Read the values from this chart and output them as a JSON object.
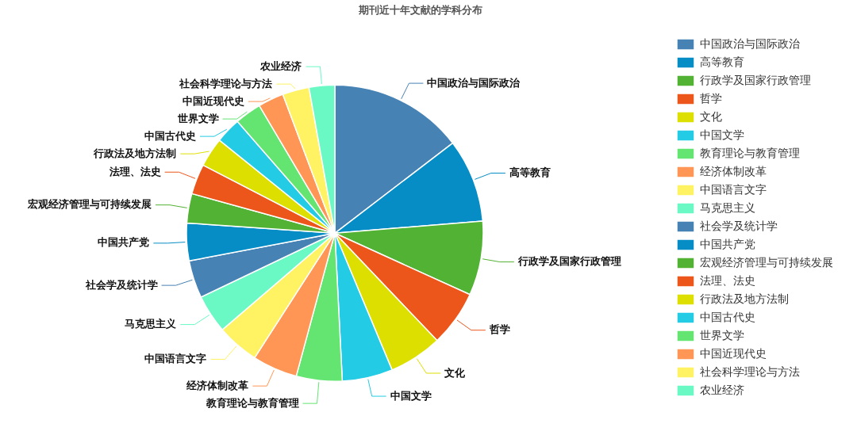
{
  "chart_data": {
    "type": "pie",
    "title": "期刊近十年文献的学科分布",
    "categories": [
      "中国政治与国际政治",
      "高等教育",
      "行政学及国家行政管理",
      "哲学",
      "文化",
      "中国文学",
      "教育理论与教育管理",
      "经济体制改革",
      "中国语言文字",
      "马克思主义",
      "社会学及统计学",
      "中国共产党",
      "宏观经济管理与可持续发展",
      "法理、法史",
      "行政法及地方法制",
      "中国古代史",
      "世界文学",
      "中国近现代史",
      "社会科学理论与方法",
      "农业经济"
    ],
    "values": [
      14.6,
      9.1,
      8.1,
      6.1,
      5.8,
      5.5,
      5.0,
      4.9,
      4.6,
      4.2,
      4.1,
      4.1,
      3.2,
      3.3,
      3.2,
      2.8,
      2.9,
      2.8,
      2.9,
      2.8
    ],
    "colors": [
      "#4682b4",
      "#078dc6",
      "#52b233",
      "#ed561b",
      "#dddf00",
      "#24cbe5",
      "#64e572",
      "#ff9655",
      "#fff263",
      "#6af9c4",
      "#4682b4",
      "#078dc6",
      "#52b233",
      "#ed561b",
      "#dddf00",
      "#24cbe5",
      "#64e572",
      "#ff9655",
      "#fff263",
      "#6af9c4"
    ],
    "legend": "right"
  }
}
